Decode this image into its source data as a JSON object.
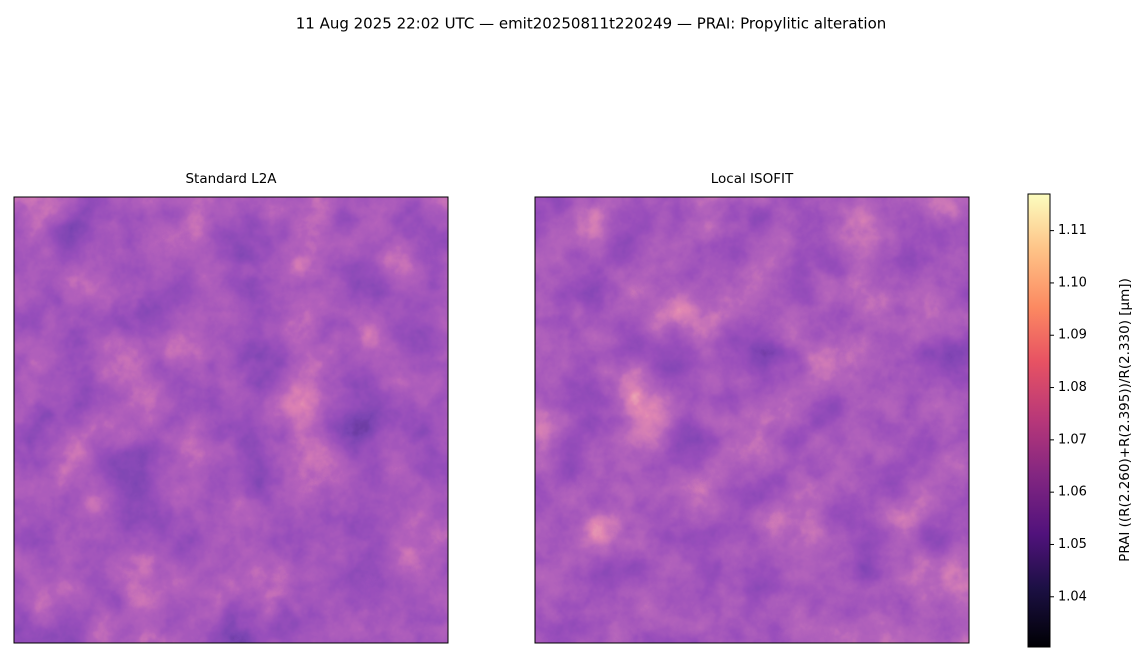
{
  "chart_data": {
    "type": "image",
    "title": "11 Aug 2025 22:02 UTC — emit20250811t220249 — PRAI: Propylitic alteration",
    "panels": [
      {
        "title": "Standard L2A"
      },
      {
        "title": "Local ISOFIT"
      }
    ],
    "colorbar": {
      "label": "PRAI  ((R(2.260)+R(2.395))/R(2.330)  [µm])",
      "lim": [
        1.0304,
        1.117
      ],
      "ticks": [
        1.04,
        1.05,
        1.06,
        1.07,
        1.08,
        1.09,
        {
          "value": 1.1,
          "label": "1.10"
        },
        1.11
      ]
    }
  }
}
